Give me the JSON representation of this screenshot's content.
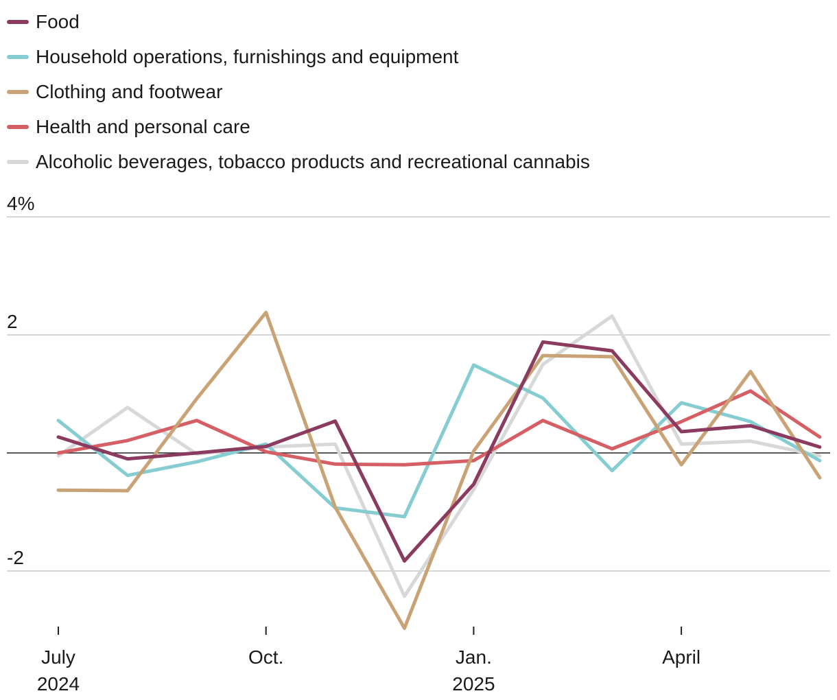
{
  "chart_data": {
    "type": "line",
    "title": "",
    "xlabel": "",
    "ylabel": "",
    "ylim": [
      -3,
      4
    ],
    "y_ticks": [
      {
        "value": 4,
        "label": "4%"
      },
      {
        "value": 2,
        "label": "2"
      },
      {
        "value": -2,
        "label": "-2"
      }
    ],
    "x": [
      "Jul 2024",
      "Aug 2024",
      "Sep 2024",
      "Oct 2024",
      "Nov 2024",
      "Dec 2024",
      "Jan 2025",
      "Feb 2025",
      "Mar 2025",
      "Apr 2025",
      "May 2025",
      "Jun 2025"
    ],
    "x_ticks": [
      {
        "index": 0,
        "line1": "July",
        "line2": "2024"
      },
      {
        "index": 3,
        "line1": "Oct.",
        "line2": ""
      },
      {
        "index": 6,
        "line1": "Jan.",
        "line2": "2025"
      },
      {
        "index": 9,
        "line1": "April",
        "line2": ""
      }
    ],
    "zero_line": true,
    "grid": true,
    "legend_position": "top-left",
    "series": [
      {
        "name": "Alcoholic beverages, tobacco products and recreational cannabis",
        "color": "#d8d8d8",
        "values": [
          -0.05,
          0.77,
          -0.02,
          0.1,
          0.15,
          -2.43,
          -0.62,
          1.5,
          2.32,
          0.15,
          0.2,
          -0.05
        ]
      },
      {
        "name": "Household operations, furnishings and equipment",
        "color": "#86cdd2",
        "values": [
          0.55,
          -0.38,
          -0.15,
          0.15,
          -0.93,
          -1.08,
          1.49,
          0.93,
          -0.3,
          0.85,
          0.53,
          -0.13
        ]
      },
      {
        "name": "Health and personal care",
        "color": "#d65f65",
        "values": [
          0.0,
          0.21,
          0.55,
          0.02,
          -0.19,
          -0.2,
          -0.13,
          0.55,
          0.07,
          0.53,
          1.05,
          0.27
        ]
      },
      {
        "name": "Clothing and footwear",
        "color": "#c9a276",
        "values": [
          -0.63,
          -0.64,
          0.92,
          2.38,
          -0.92,
          -2.97,
          0.03,
          1.65,
          1.63,
          -0.2,
          1.38,
          -0.42
        ]
      },
      {
        "name": "Food",
        "color": "#8b3b60",
        "values": [
          0.27,
          -0.1,
          0.0,
          0.11,
          0.54,
          -1.83,
          -0.53,
          1.88,
          1.73,
          0.36,
          0.46,
          0.1
        ]
      }
    ],
    "legend_order": [
      "Food",
      "Household operations, furnishings and equipment",
      "Clothing and footwear",
      "Health and personal care",
      "Alcoholic beverages, tobacco products and recreational cannabis"
    ]
  }
}
